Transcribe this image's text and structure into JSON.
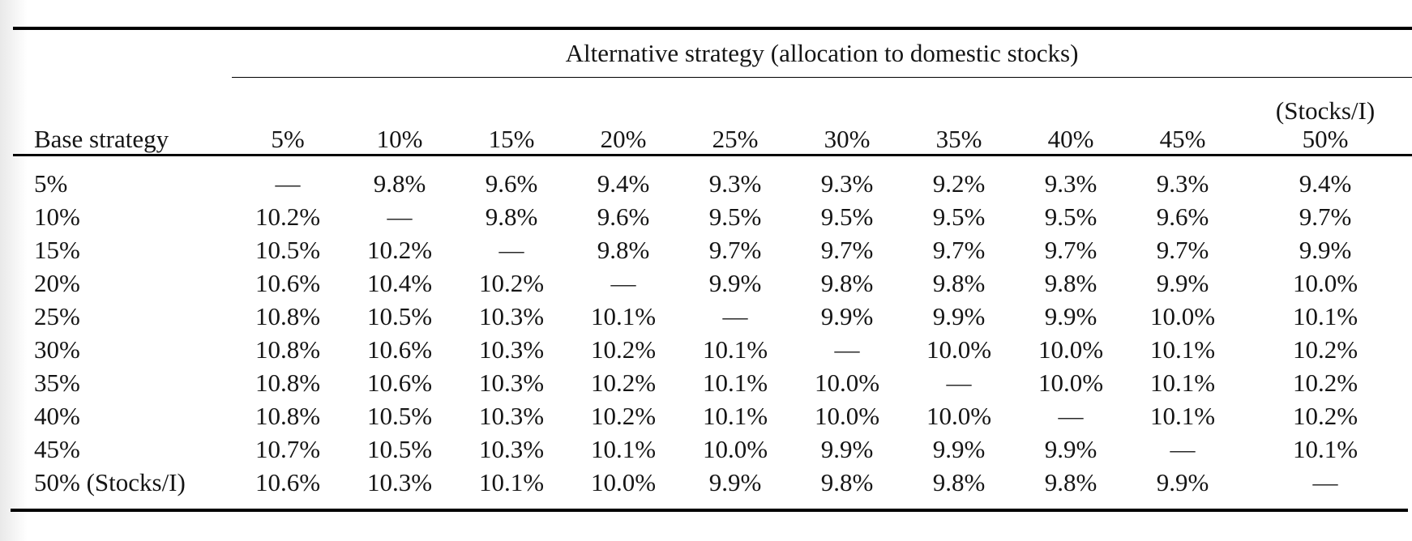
{
  "table": {
    "span_header": "Alternative strategy (allocation to domestic stocks)",
    "row_header_label": "Base strategy",
    "columns": [
      "5%",
      "10%",
      "15%",
      "20%",
      "25%",
      "30%",
      "35%",
      "40%",
      "45%"
    ],
    "last_column": {
      "line1": "(Stocks/I)",
      "line2": "50%"
    },
    "rows": [
      {
        "label": "5%",
        "values": [
          "—",
          "9.8%",
          "9.6%",
          "9.4%",
          "9.3%",
          "9.3%",
          "9.2%",
          "9.3%",
          "9.3%",
          "9.4%"
        ]
      },
      {
        "label": "10%",
        "values": [
          "10.2%",
          "—",
          "9.8%",
          "9.6%",
          "9.5%",
          "9.5%",
          "9.5%",
          "9.5%",
          "9.6%",
          "9.7%"
        ]
      },
      {
        "label": "15%",
        "values": [
          "10.5%",
          "10.2%",
          "—",
          "9.8%",
          "9.7%",
          "9.7%",
          "9.7%",
          "9.7%",
          "9.7%",
          "9.9%"
        ]
      },
      {
        "label": "20%",
        "values": [
          "10.6%",
          "10.4%",
          "10.2%",
          "—",
          "9.9%",
          "9.8%",
          "9.8%",
          "9.8%",
          "9.9%",
          "10.0%"
        ]
      },
      {
        "label": "25%",
        "values": [
          "10.8%",
          "10.5%",
          "10.3%",
          "10.1%",
          "—",
          "9.9%",
          "9.9%",
          "9.9%",
          "10.0%",
          "10.1%"
        ]
      },
      {
        "label": "30%",
        "values": [
          "10.8%",
          "10.6%",
          "10.3%",
          "10.2%",
          "10.1%",
          "—",
          "10.0%",
          "10.0%",
          "10.1%",
          "10.2%"
        ]
      },
      {
        "label": "35%",
        "values": [
          "10.8%",
          "10.6%",
          "10.3%",
          "10.2%",
          "10.1%",
          "10.0%",
          "—",
          "10.0%",
          "10.1%",
          "10.2%"
        ]
      },
      {
        "label": "40%",
        "values": [
          "10.8%",
          "10.5%",
          "10.3%",
          "10.2%",
          "10.1%",
          "10.0%",
          "10.0%",
          "—",
          "10.1%",
          "10.2%"
        ]
      },
      {
        "label": "45%",
        "values": [
          "10.7%",
          "10.5%",
          "10.3%",
          "10.1%",
          "10.0%",
          "9.9%",
          "9.9%",
          "9.9%",
          "—",
          "10.1%"
        ]
      },
      {
        "label": "50% (Stocks/I)",
        "values": [
          "10.6%",
          "10.3%",
          "10.1%",
          "10.0%",
          "9.9%",
          "9.8%",
          "9.8%",
          "9.8%",
          "9.9%",
          "—"
        ]
      }
    ]
  },
  "colors": {
    "text": "#151515",
    "rule": "#000000",
    "background": "#ffffff",
    "left_edge_shade": "#e9e9e9"
  }
}
